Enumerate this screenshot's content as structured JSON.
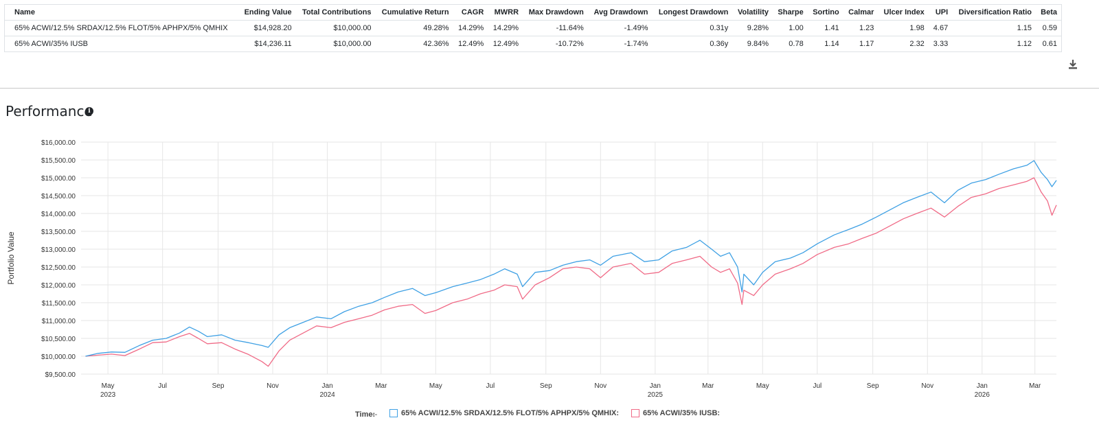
{
  "table": {
    "headers": [
      "Name",
      "Ending Value",
      "Total Contributions",
      "Cumulative Return",
      "CAGR",
      "MWRR",
      "Max Drawdown",
      "Avg Drawdown",
      "Longest Drawdown",
      "Volatility",
      "Sharpe",
      "Sortino",
      "Calmar",
      "Ulcer Index",
      "UPI",
      "Diversification Ratio",
      "Beta"
    ],
    "rows": [
      [
        "65% ACWI/12.5% SRDAX/12.5% FLOT/5% APHPX/5% QMHIX",
        "$14,928.20",
        "$10,000.00",
        "49.28%",
        "14.29%",
        "14.29%",
        "-11.64%",
        "-1.49%",
        "0.31y",
        "9.28%",
        "1.00",
        "1.41",
        "1.23",
        "1.98",
        "4.67",
        "1.15",
        "0.59"
      ],
      [
        "65% ACWI/35% IUSB",
        "$14,236.11",
        "$10,000.00",
        "42.36%",
        "12.49%",
        "12.49%",
        "-10.72%",
        "-1.74%",
        "0.36y",
        "9.84%",
        "0.78",
        "1.14",
        "1.17",
        "2.32",
        "3.33",
        "1.12",
        "0.61"
      ]
    ]
  },
  "download_icon": "download-icon",
  "performance": {
    "title": "Performance",
    "info_icon": "info-icon",
    "info_glyph": "i"
  },
  "legend": {
    "time_label": "Time:",
    "time_value": "--"
  },
  "chart_data": {
    "type": "line",
    "title": "",
    "ylabel": "Portfolio Value",
    "xlabel": "",
    "ylim": [
      9500,
      16000
    ],
    "yticks": [
      9500,
      10000,
      10500,
      11000,
      11500,
      12000,
      12500,
      13000,
      13500,
      14000,
      14500,
      15000,
      15500,
      16000
    ],
    "ytick_labels": [
      "$9,500.00",
      "$10,000.00",
      "$10,500.00",
      "$11,000.00",
      "$11,500.00",
      "$12,000.00",
      "$12,500.00",
      "$13,000.00",
      "$13,500.00",
      "$14,000.00",
      "$14,500.00",
      "$15,000.00",
      "$15,500.00",
      "$16,000.00"
    ],
    "xlim": [
      "2023-04-01",
      "2026-03-25"
    ],
    "xticks": [
      {
        "date": "2023-05-01",
        "label": "May",
        "year": "2023"
      },
      {
        "date": "2023-07-01",
        "label": "Jul",
        "year": ""
      },
      {
        "date": "2023-09-01",
        "label": "Sep",
        "year": ""
      },
      {
        "date": "2023-11-01",
        "label": "Nov",
        "year": ""
      },
      {
        "date": "2024-01-01",
        "label": "Jan",
        "year": "2024"
      },
      {
        "date": "2024-03-01",
        "label": "Mar",
        "year": ""
      },
      {
        "date": "2024-05-01",
        "label": "May",
        "year": ""
      },
      {
        "date": "2024-07-01",
        "label": "Jul",
        "year": ""
      },
      {
        "date": "2024-09-01",
        "label": "Sep",
        "year": ""
      },
      {
        "date": "2024-11-01",
        "label": "Nov",
        "year": ""
      },
      {
        "date": "2025-01-01",
        "label": "Jan",
        "year": "2025"
      },
      {
        "date": "2025-03-01",
        "label": "Mar",
        "year": ""
      },
      {
        "date": "2025-05-01",
        "label": "May",
        "year": ""
      },
      {
        "date": "2025-07-01",
        "label": "Jul",
        "year": ""
      },
      {
        "date": "2025-09-01",
        "label": "Sep",
        "year": ""
      },
      {
        "date": "2025-11-01",
        "label": "Nov",
        "year": ""
      },
      {
        "date": "2026-01-01",
        "label": "Jan",
        "year": "2026"
      },
      {
        "date": "2026-03-01",
        "label": "Mar",
        "year": ""
      }
    ],
    "grid": true,
    "series": [
      {
        "name": "65% ACWI/12.5% SRDAX/12.5% FLOT/5% APHPX/5% QMHIX",
        "color": "#3ea0e4",
        "points": [
          [
            "2023-04-06",
            10000
          ],
          [
            "2023-04-20",
            10080
          ],
          [
            "2023-05-05",
            10120
          ],
          [
            "2023-05-20",
            10110
          ],
          [
            "2023-06-05",
            10300
          ],
          [
            "2023-06-20",
            10450
          ],
          [
            "2023-07-05",
            10500
          ],
          [
            "2023-07-20",
            10650
          ],
          [
            "2023-07-31",
            10820
          ],
          [
            "2023-08-10",
            10700
          ],
          [
            "2023-08-20",
            10550
          ],
          [
            "2023-09-05",
            10600
          ],
          [
            "2023-09-20",
            10450
          ],
          [
            "2023-10-05",
            10380
          ],
          [
            "2023-10-20",
            10300
          ],
          [
            "2023-10-27",
            10250
          ],
          [
            "2023-11-08",
            10600
          ],
          [
            "2023-11-20",
            10800
          ],
          [
            "2023-12-05",
            10950
          ],
          [
            "2023-12-20",
            11100
          ],
          [
            "2024-01-05",
            11050
          ],
          [
            "2024-01-20",
            11250
          ],
          [
            "2024-02-05",
            11400
          ],
          [
            "2024-02-20",
            11500
          ],
          [
            "2024-03-05",
            11650
          ],
          [
            "2024-03-20",
            11800
          ],
          [
            "2024-04-05",
            11900
          ],
          [
            "2024-04-19",
            11700
          ],
          [
            "2024-05-01",
            11780
          ],
          [
            "2024-05-20",
            11950
          ],
          [
            "2024-06-05",
            12050
          ],
          [
            "2024-06-20",
            12150
          ],
          [
            "2024-07-05",
            12300
          ],
          [
            "2024-07-17",
            12450
          ],
          [
            "2024-07-31",
            12300
          ],
          [
            "2024-08-06",
            11950
          ],
          [
            "2024-08-20",
            12350
          ],
          [
            "2024-09-05",
            12400
          ],
          [
            "2024-09-20",
            12550
          ],
          [
            "2024-10-05",
            12650
          ],
          [
            "2024-10-20",
            12700
          ],
          [
            "2024-11-01",
            12550
          ],
          [
            "2024-11-15",
            12800
          ],
          [
            "2024-12-05",
            12900
          ],
          [
            "2024-12-20",
            12650
          ],
          [
            "2025-01-05",
            12700
          ],
          [
            "2025-01-20",
            12950
          ],
          [
            "2025-02-05",
            13050
          ],
          [
            "2025-02-20",
            13250
          ],
          [
            "2025-03-05",
            13000
          ],
          [
            "2025-03-15",
            12800
          ],
          [
            "2025-03-25",
            12900
          ],
          [
            "2025-04-03",
            12500
          ],
          [
            "2025-04-08",
            11800
          ],
          [
            "2025-04-10",
            12300
          ],
          [
            "2025-04-21",
            12000
          ],
          [
            "2025-05-01",
            12350
          ],
          [
            "2025-05-15",
            12650
          ],
          [
            "2025-06-01",
            12750
          ],
          [
            "2025-06-15",
            12900
          ],
          [
            "2025-07-01",
            13150
          ],
          [
            "2025-07-20",
            13400
          ],
          [
            "2025-08-05",
            13550
          ],
          [
            "2025-08-20",
            13700
          ],
          [
            "2025-09-05",
            13900
          ],
          [
            "2025-09-20",
            14100
          ],
          [
            "2025-10-05",
            14300
          ],
          [
            "2025-10-20",
            14450
          ],
          [
            "2025-11-05",
            14600
          ],
          [
            "2025-11-20",
            14300
          ],
          [
            "2025-12-05",
            14650
          ],
          [
            "2025-12-20",
            14850
          ],
          [
            "2026-01-05",
            14950
          ],
          [
            "2026-01-20",
            15100
          ],
          [
            "2026-02-05",
            15250
          ],
          [
            "2026-02-20",
            15350
          ],
          [
            "2026-02-28",
            15480
          ],
          [
            "2026-03-08",
            15150
          ],
          [
            "2026-03-15",
            14950
          ],
          [
            "2026-03-20",
            14750
          ],
          [
            "2026-03-25",
            14928
          ]
        ]
      },
      {
        "name": "65% ACWI/35% IUSB",
        "color": "#f06a86",
        "points": [
          [
            "2023-04-06",
            10000
          ],
          [
            "2023-04-20",
            10030
          ],
          [
            "2023-05-05",
            10060
          ],
          [
            "2023-05-20",
            10020
          ],
          [
            "2023-06-05",
            10200
          ],
          [
            "2023-06-20",
            10380
          ],
          [
            "2023-07-05",
            10400
          ],
          [
            "2023-07-20",
            10550
          ],
          [
            "2023-07-31",
            10640
          ],
          [
            "2023-08-10",
            10500
          ],
          [
            "2023-08-20",
            10350
          ],
          [
            "2023-09-05",
            10380
          ],
          [
            "2023-09-20",
            10200
          ],
          [
            "2023-10-05",
            10050
          ],
          [
            "2023-10-20",
            9850
          ],
          [
            "2023-10-27",
            9720
          ],
          [
            "2023-11-08",
            10150
          ],
          [
            "2023-11-20",
            10450
          ],
          [
            "2023-12-05",
            10650
          ],
          [
            "2023-12-20",
            10850
          ],
          [
            "2024-01-05",
            10800
          ],
          [
            "2024-01-20",
            10950
          ],
          [
            "2024-02-05",
            11050
          ],
          [
            "2024-02-20",
            11150
          ],
          [
            "2024-03-05",
            11300
          ],
          [
            "2024-03-20",
            11400
          ],
          [
            "2024-04-05",
            11450
          ],
          [
            "2024-04-19",
            11200
          ],
          [
            "2024-05-01",
            11280
          ],
          [
            "2024-05-20",
            11500
          ],
          [
            "2024-06-05",
            11600
          ],
          [
            "2024-06-20",
            11750
          ],
          [
            "2024-07-05",
            11850
          ],
          [
            "2024-07-17",
            12000
          ],
          [
            "2024-07-31",
            11950
          ],
          [
            "2024-08-06",
            11600
          ],
          [
            "2024-08-20",
            12000
          ],
          [
            "2024-09-05",
            12200
          ],
          [
            "2024-09-20",
            12450
          ],
          [
            "2024-10-05",
            12500
          ],
          [
            "2024-10-20",
            12450
          ],
          [
            "2024-11-01",
            12200
          ],
          [
            "2024-11-15",
            12500
          ],
          [
            "2024-12-05",
            12600
          ],
          [
            "2024-12-20",
            12300
          ],
          [
            "2025-01-05",
            12350
          ],
          [
            "2025-01-20",
            12600
          ],
          [
            "2025-02-05",
            12700
          ],
          [
            "2025-02-20",
            12800
          ],
          [
            "2025-03-05",
            12500
          ],
          [
            "2025-03-15",
            12350
          ],
          [
            "2025-03-25",
            12450
          ],
          [
            "2025-04-03",
            12050
          ],
          [
            "2025-04-08",
            11450
          ],
          [
            "2025-04-10",
            11850
          ],
          [
            "2025-04-21",
            11700
          ],
          [
            "2025-05-01",
            12000
          ],
          [
            "2025-05-15",
            12300
          ],
          [
            "2025-06-01",
            12450
          ],
          [
            "2025-06-15",
            12600
          ],
          [
            "2025-07-01",
            12850
          ],
          [
            "2025-07-20",
            13050
          ],
          [
            "2025-08-05",
            13150
          ],
          [
            "2025-08-20",
            13300
          ],
          [
            "2025-09-05",
            13450
          ],
          [
            "2025-09-20",
            13650
          ],
          [
            "2025-10-05",
            13850
          ],
          [
            "2025-10-20",
            14000
          ],
          [
            "2025-11-05",
            14150
          ],
          [
            "2025-11-20",
            13900
          ],
          [
            "2025-12-05",
            14200
          ],
          [
            "2025-12-20",
            14450
          ],
          [
            "2026-01-05",
            14550
          ],
          [
            "2026-01-20",
            14700
          ],
          [
            "2026-02-05",
            14800
          ],
          [
            "2026-02-20",
            14900
          ],
          [
            "2026-02-28",
            15000
          ],
          [
            "2026-03-08",
            14600
          ],
          [
            "2026-03-15",
            14350
          ],
          [
            "2026-03-20",
            13950
          ],
          [
            "2026-03-25",
            14236
          ]
        ]
      }
    ]
  }
}
